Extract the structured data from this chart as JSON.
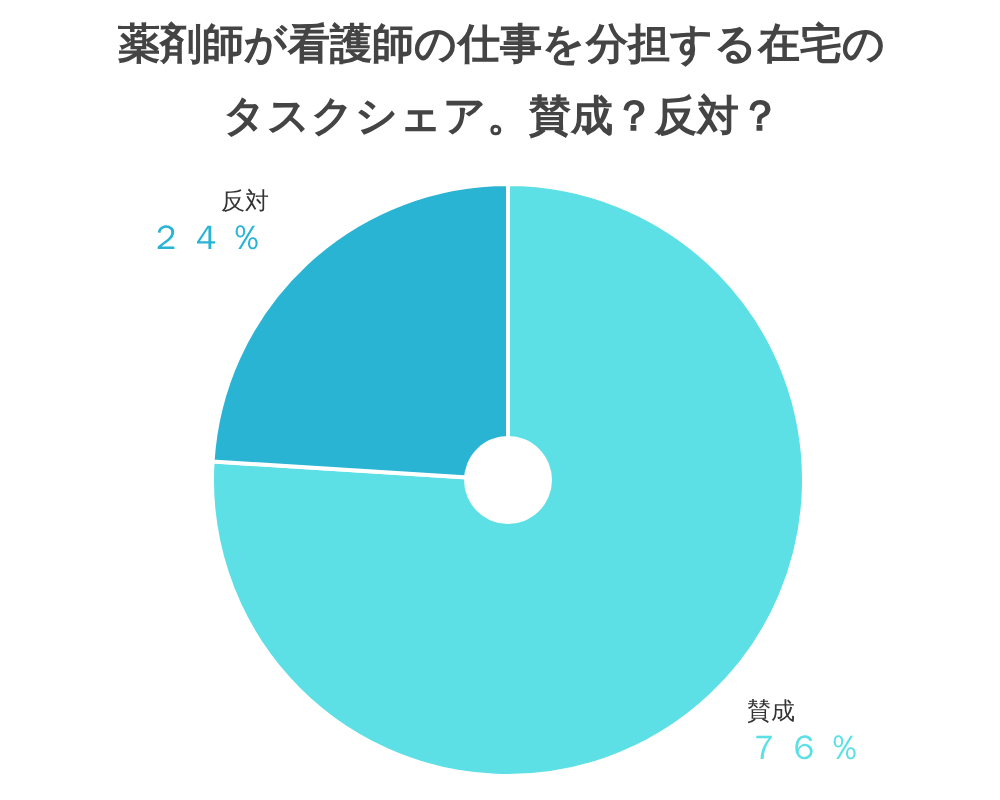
{
  "chart_data": {
    "type": "pie",
    "title": "薬剤師が看護師の仕事を分担する在宅のタスクシェア。賛成？反対？",
    "categories": [
      "賛成",
      "反対"
    ],
    "values": [
      76,
      24
    ],
    "value_labels": [
      "７６％",
      "２４％"
    ],
    "colors": [
      "#5ce0e6",
      "#2ab4d4"
    ]
  }
}
